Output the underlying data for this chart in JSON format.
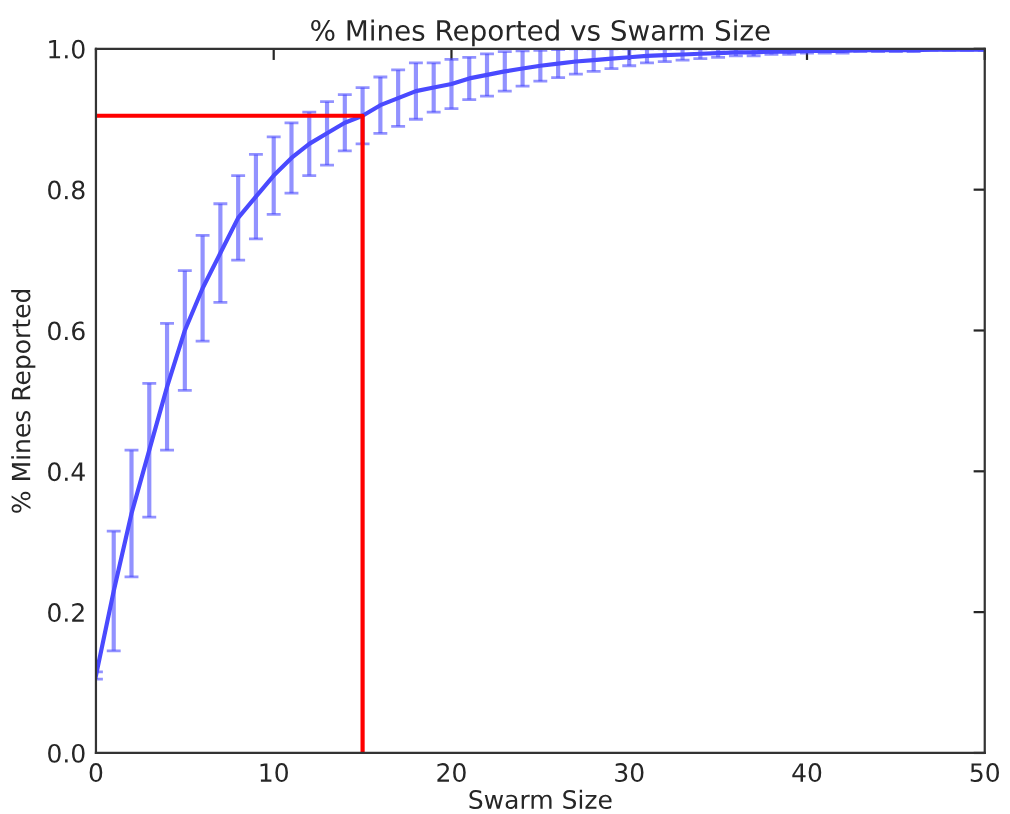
{
  "chart_data": {
    "type": "line",
    "title": "% Mines Reported vs Swarm Size",
    "xlabel": "Swarm Size",
    "ylabel": "% Mines Reported",
    "xlim": [
      0,
      50
    ],
    "xticks": [
      0,
      10,
      20,
      30,
      40,
      50
    ],
    "ylim": [
      0,
      1
    ],
    "yticks": [
      {
        "value": 0,
        "label": "0.0"
      },
      {
        "value": 0.2,
        "label": "0.2"
      },
      {
        "value": 0.4,
        "label": "0.4"
      },
      {
        "value": 0.6,
        "label": "0.6"
      },
      {
        "value": 0.8,
        "label": "0.8"
      },
      {
        "value": 1,
        "label": "1.0"
      }
    ],
    "grid": false,
    "marker": "none",
    "series": [
      {
        "color": "#4a4aff",
        "x": [
          0,
          1,
          2,
          3,
          4,
          5,
          6,
          7,
          8,
          9,
          10,
          11,
          12,
          13,
          14,
          15,
          16,
          17,
          18,
          19,
          20,
          21,
          22,
          23,
          24,
          25,
          26,
          27,
          28,
          29,
          30,
          31,
          32,
          33,
          34,
          35,
          36,
          37,
          38,
          39,
          40,
          41,
          42,
          43,
          44,
          45,
          46,
          47,
          48,
          49,
          50
        ],
        "values": [
          0.11,
          0.23,
          0.34,
          0.43,
          0.52,
          0.6,
          0.66,
          0.71,
          0.76,
          0.79,
          0.82,
          0.845,
          0.865,
          0.88,
          0.895,
          0.905,
          0.92,
          0.93,
          0.94,
          0.945,
          0.95,
          0.958,
          0.963,
          0.968,
          0.972,
          0.976,
          0.979,
          0.982,
          0.984,
          0.986,
          0.988,
          0.99,
          0.991,
          0.992,
          0.993,
          0.994,
          0.995,
          0.995,
          0.996,
          0.996,
          0.997,
          0.997,
          0.997,
          0.998,
          0.998,
          0.998,
          0.998,
          0.999,
          0.999,
          0.999,
          0.999
        ],
        "errors": [
          0.005,
          0.085,
          0.09,
          0.095,
          0.09,
          0.085,
          0.075,
          0.07,
          0.06,
          0.06,
          0.055,
          0.05,
          0.045,
          0.045,
          0.04,
          0.04,
          0.04,
          0.04,
          0.04,
          0.035,
          0.035,
          0.03,
          0.03,
          0.028,
          0.025,
          0.022,
          0.02,
          0.018,
          0.016,
          0.014,
          0.012,
          0.01,
          0.009,
          0.008,
          0.007,
          0.006,
          0.005,
          0.005,
          0.004,
          0.004,
          0.003,
          0.003,
          0.003,
          0.002,
          0.002,
          0.002,
          0.002,
          0.001,
          0.001,
          0.001,
          0.001
        ]
      },
      {
        "type": "line",
        "color": "#ff0000",
        "x": [
          0,
          15,
          15
        ],
        "values": [
          0.905,
          0.905,
          0
        ]
      }
    ]
  }
}
